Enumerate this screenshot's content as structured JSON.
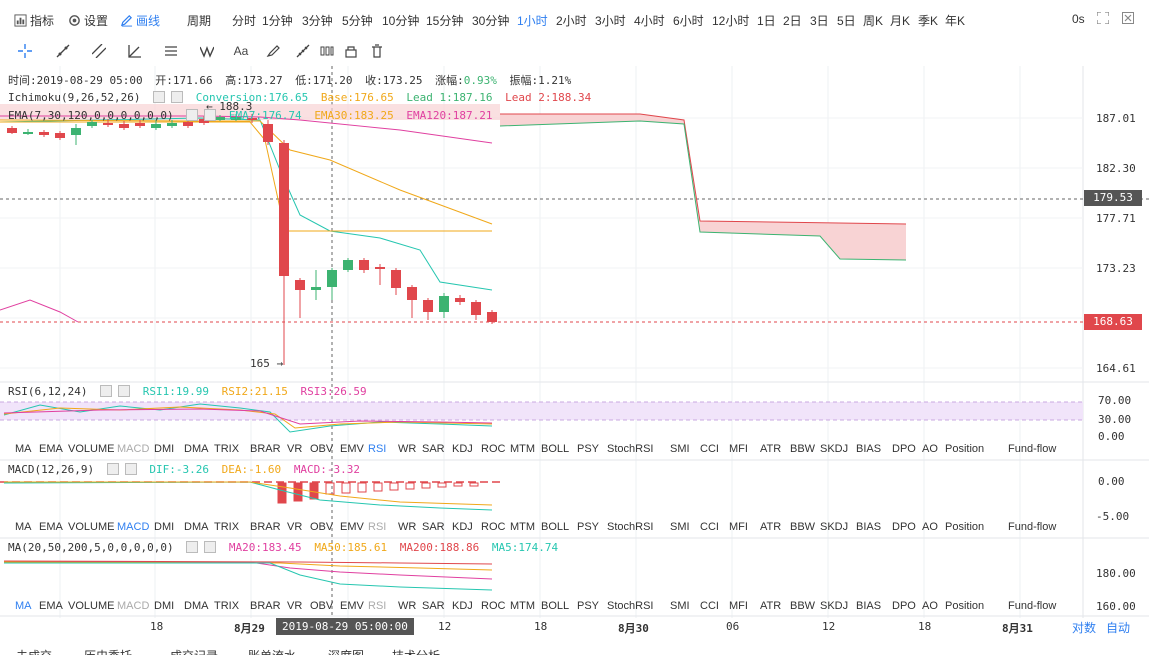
{
  "topbar": {
    "indicator": "指标",
    "settings": "设置",
    "draw": "画线",
    "period_label": "周期",
    "periods": [
      "分时",
      "1分钟",
      "3分钟",
      "5分钟",
      "10分钟",
      "15分钟",
      "30分钟",
      "1小时",
      "2小时",
      "3小时",
      "4小时",
      "6小时",
      "12小时",
      "1日",
      "2日",
      "3日",
      "5日",
      "周K",
      "月K",
      "季K",
      "年K"
    ],
    "active_period": "1小时",
    "countdown": "0s"
  },
  "info_line": {
    "time": "时间:2019-08-29 05:00",
    "open": "开:171.66",
    "high": "高:173.27",
    "low": "低:171.20",
    "close": "收:173.25",
    "change_label": "涨幅:",
    "change": "0.93%",
    "amplitude": "振幅:1.21%"
  },
  "ichimoku": {
    "name": "Ichimoku(9,26,52,26)",
    "conversion": "Conversion:176.65",
    "base": "Base:176.65",
    "lead1": "Lead 1:187.16",
    "lead2": "Lead 2:188.34"
  },
  "ema": {
    "name": "EMA(7,30,120,0,0,0,0,0,0)",
    "ema7": "EMA7:176.74",
    "ema30": "EMA30:183.25",
    "ema120": "EMA120:187.21"
  },
  "main_chart": {
    "high_marker": "← 188.3",
    "low_marker": "165 →",
    "y_ticks": [
      "187.01",
      "182.30",
      "177.71",
      "173.23",
      "164.61"
    ],
    "crosshair_price": "179.53",
    "last_price": "168.63"
  },
  "rsi": {
    "name": "RSI(6,12,24)",
    "rsi1": "RSI1:19.99",
    "rsi2": "RSI2:21.15",
    "rsi3": "RSI3:26.59",
    "y_ticks": [
      "70.00",
      "30.00",
      "0.00"
    ]
  },
  "macd": {
    "name": "MACD(12,26,9)",
    "dif": "DIF:-3.26",
    "dea": "DEA:-1.60",
    "macd": "MACD:-3.32",
    "y_ticks": [
      "0.00",
      "-5.00"
    ]
  },
  "ma": {
    "name": "MA(20,50,200,5,0,0,0,0,0)",
    "ma20": "MA20:183.45",
    "ma50": "MA50:185.61",
    "ma200": "MA200:188.86",
    "ma5": "MA5:174.74",
    "y_ticks": [
      "180.00",
      "160.00"
    ]
  },
  "indicator_tabs": [
    "MA",
    "EMA",
    "VOLUME",
    "MACD",
    "DMI",
    "DMA",
    "TRIX",
    "BRAR",
    "VR",
    "OBV",
    "EMV",
    "RSI",
    "WR",
    "SAR",
    "KDJ",
    "ROC",
    "MTM",
    "BOLL",
    "PSY",
    "StochRSI",
    "SMI",
    "CCI",
    "MFI",
    "ATR",
    "BBW",
    "SKDJ",
    "BIAS",
    "DPO",
    "AO",
    "Position",
    "Fund-flow"
  ],
  "x_axis": {
    "labels": [
      "18",
      "8月29",
      "12",
      "18",
      "8月30",
      "06",
      "12",
      "18",
      "8月31"
    ],
    "crosshair_time": "2019-08-29 05:00:00",
    "log_scale": "对数",
    "auto": "自动"
  },
  "bottombar": [
    "未成交",
    "历史委托",
    "成交记录",
    "账单流水",
    "深度图",
    "技术分析"
  ],
  "colors": {
    "up": "#3cb371",
    "down": "#e0474c",
    "accent": "#2f7ff0",
    "ema7": "#26c6b0",
    "ema30": "#f0a81a",
    "ema120": "#e040a0"
  }
}
